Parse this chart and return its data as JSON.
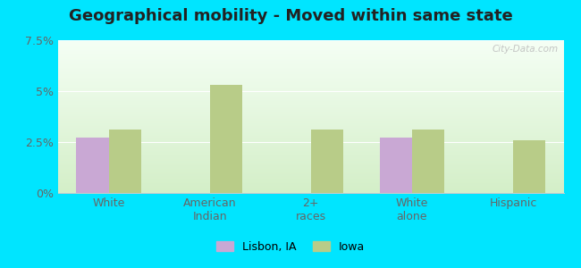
{
  "title": "Geographical mobility - Moved within same state",
  "categories": [
    "White",
    "American\nIndian",
    "2+\nraces",
    "White\nalone",
    "Hispanic"
  ],
  "lisbon_values": [
    2.7,
    0,
    0,
    2.7,
    0
  ],
  "iowa_values": [
    3.1,
    5.3,
    3.1,
    3.1,
    2.6
  ],
  "lisbon_color": "#c9a8d4",
  "iowa_color": "#b8cc88",
  "ylim": [
    0,
    7.5
  ],
  "yticks": [
    0,
    2.5,
    5.0,
    7.5
  ],
  "ytick_labels": [
    "0%",
    "2.5%",
    "5%",
    "7.5%"
  ],
  "bg_top_color": "#f5fff5",
  "bg_bottom_color": "#d4efc8",
  "outer_background": "#00e5ff",
  "legend_lisbon": "Lisbon, IA",
  "legend_iowa": "Iowa",
  "bar_width": 0.32,
  "watermark": "City-Data.com",
  "title_fontsize": 13,
  "tick_fontsize": 9
}
